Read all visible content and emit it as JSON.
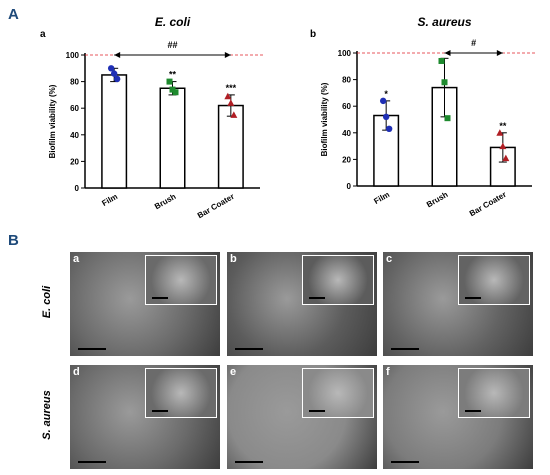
{
  "panel_A": "A",
  "panel_B": "B",
  "chart_data": [
    {
      "type": "bar",
      "sub": "a",
      "title": "E. coli",
      "ylabel": "Biofilm viability (%)",
      "categories": [
        "Film",
        "Brush",
        "Bar Coater"
      ],
      "values": [
        85,
        75,
        62
      ],
      "errors": [
        5,
        5,
        8
      ],
      "points": [
        [
          90,
          86,
          82
        ],
        [
          80,
          74,
          72
        ],
        [
          69,
          64,
          55
        ]
      ],
      "point_colors": [
        "#1f2fb5",
        "#1e8a2e",
        "#b01e24"
      ],
      "ylim": [
        0,
        100
      ],
      "yticks": [
        0,
        20,
        40,
        60,
        80,
        100
      ],
      "significance": [
        "",
        "**",
        "***"
      ],
      "reference_line": 100,
      "bracket": {
        "from": "Film",
        "to": "Bar Coater",
        "label": "##"
      }
    },
    {
      "type": "bar",
      "sub": "b",
      "title": "S. aureus",
      "ylabel": "Biofilm viability (%)",
      "categories": [
        "Film",
        "Brush",
        "Bar Coater"
      ],
      "values": [
        53,
        74,
        29
      ],
      "errors": [
        11,
        22,
        11
      ],
      "points": [
        [
          64,
          52,
          43
        ],
        [
          94,
          78,
          51
        ],
        [
          40,
          30,
          21
        ]
      ],
      "point_colors": [
        "#1f2fb5",
        "#1e8a2e",
        "#b01e24"
      ],
      "ylim": [
        0,
        100
      ],
      "yticks": [
        0,
        20,
        40,
        60,
        80,
        100
      ],
      "significance": [
        "*",
        "",
        "**"
      ],
      "reference_line": 100,
      "bracket": {
        "from": "Brush",
        "to": "Bar Coater",
        "label": "#"
      }
    }
  ],
  "sem": {
    "row_labels": [
      "E. coli",
      "S. aureus"
    ],
    "panels": [
      {
        "letter": "a",
        "tone": "#6a6a6a"
      },
      {
        "letter": "b",
        "tone": "#5c5c5c"
      },
      {
        "letter": "c",
        "tone": "#636363"
      },
      {
        "letter": "d",
        "tone": "#6b6b6b"
      },
      {
        "letter": "e",
        "tone": "#8a8a8a"
      },
      {
        "letter": "f",
        "tone": "#7c7c7c"
      }
    ]
  }
}
